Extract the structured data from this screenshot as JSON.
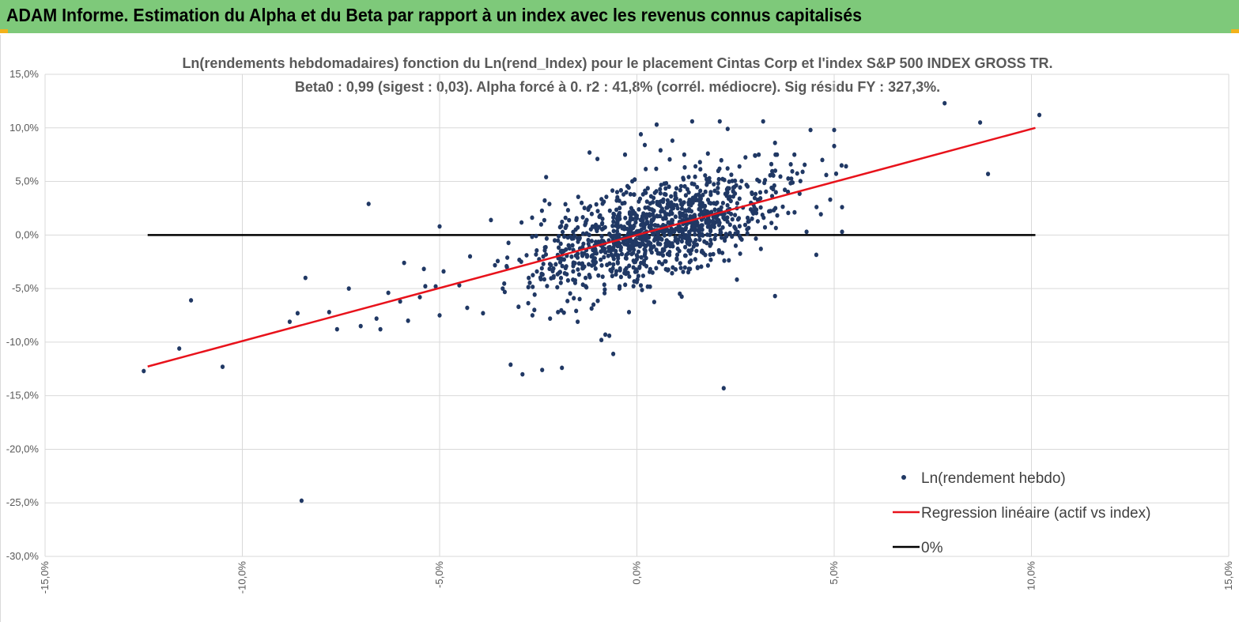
{
  "banner": {
    "title": "ADAM Informe. Estimation du Alpha et du Beta par rapport à un index avec les revenus connus capitalisés",
    "background": "#7ec97a",
    "corner_color": "#f2b21b"
  },
  "chart_data": {
    "type": "scatter",
    "title_line1": "Ln(rendements hebdomadaires) fonction du Ln(rend_Index) pour le placement Cintas Corp et l'index S&P 500 INDEX GROSS TR.",
    "title_line2": "Beta0 : 0,99  (sigest : 0,03). Alpha forcé à 0. r2 : 41,8% (corrél. médiocre). Sig résidu FY : 327,3%.",
    "xlim": [
      -15,
      15
    ],
    "ylim": [
      -30,
      15
    ],
    "x_ticks": [
      "-15,0%",
      "-10,0%",
      "-5,0%",
      "0,0%",
      "5,0%",
      "10,0%",
      "15,0%"
    ],
    "y_ticks": [
      "15,0%",
      "10,0%",
      "5,0%",
      "0,0%",
      "-5,0%",
      "-10,0%",
      "-15,0%",
      "-20,0%",
      "-25,0%",
      "-30,0%"
    ],
    "legend": {
      "position": "bottom-right",
      "scatter_label": "Ln(rendement hebdo)",
      "regression_label": "Regression linéaire (actif vs index)",
      "zero_label": "0%"
    },
    "colors": {
      "points": "#203864",
      "regression": "#e8121b",
      "zero_line": "#000000",
      "grid": "#d9d9d9",
      "text": "#595959"
    },
    "regression": {
      "beta": 0.99,
      "alpha": 0,
      "x_range": [
        -12.4,
        10.1
      ]
    },
    "zero_line": {
      "y": 0,
      "x_range": [
        -12.4,
        10.1
      ]
    },
    "points_cloud": {
      "count": 1150,
      "beta": 0.99,
      "x_center": 0.4,
      "x_spread": 1.6,
      "residual_spread": 2.1
    },
    "outliers": [
      [
        -12.5,
        -12.7
      ],
      [
        -11.6,
        -10.6
      ],
      [
        -11.3,
        -6.1
      ],
      [
        -10.5,
        -12.3
      ],
      [
        -8.8,
        -8.1
      ],
      [
        -8.6,
        -7.3
      ],
      [
        -8.4,
        -4.0
      ],
      [
        -8.5,
        -24.8
      ],
      [
        -7.8,
        -7.2
      ],
      [
        -7.6,
        -8.8
      ],
      [
        -7.3,
        -5.0
      ],
      [
        -7.0,
        -8.5
      ],
      [
        -6.8,
        2.9
      ],
      [
        -6.6,
        -7.8
      ],
      [
        -6.5,
        -8.8
      ],
      [
        -6.3,
        -5.4
      ],
      [
        -6.0,
        -6.2
      ],
      [
        -5.8,
        -8.0
      ],
      [
        -5.9,
        -2.6
      ],
      [
        -5.5,
        -5.8
      ],
      [
        -5.1,
        -4.8
      ],
      [
        -5.0,
        0.8
      ],
      [
        -4.9,
        -3.4
      ],
      [
        -4.5,
        -4.7
      ],
      [
        -4.3,
        -6.8
      ],
      [
        -3.9,
        -7.3
      ],
      [
        -3.7,
        1.4
      ],
      [
        -3.4,
        -5.0
      ],
      [
        -3.2,
        -12.1
      ],
      [
        -3.0,
        -6.7
      ],
      [
        -2.9,
        -13.0
      ],
      [
        -2.6,
        -7.0
      ],
      [
        -2.4,
        -12.6
      ],
      [
        -2.3,
        5.4
      ],
      [
        -2.2,
        -7.8
      ],
      [
        -2.0,
        -7.2
      ],
      [
        -1.9,
        -12.4
      ],
      [
        -1.6,
        -5.9
      ],
      [
        -1.5,
        -8.1
      ],
      [
        -1.4,
        3.0
      ],
      [
        -1.3,
        -4.0
      ],
      [
        -1.2,
        7.7
      ],
      [
        -1.1,
        -6.5
      ],
      [
        -1.0,
        7.1
      ],
      [
        -0.9,
        -9.8
      ],
      [
        -0.8,
        -9.3
      ],
      [
        -0.6,
        -11.1
      ],
      [
        -0.7,
        -9.4
      ],
      [
        -0.3,
        7.5
      ],
      [
        -0.2,
        -7.2
      ],
      [
        0.1,
        9.4
      ],
      [
        0.2,
        8.4
      ],
      [
        0.5,
        10.3
      ],
      [
        0.6,
        7.9
      ],
      [
        0.9,
        8.8
      ],
      [
        1.2,
        7.5
      ],
      [
        1.4,
        10.6
      ],
      [
        1.6,
        6.8
      ],
      [
        1.8,
        7.6
      ],
      [
        2.1,
        10.6
      ],
      [
        2.3,
        9.9
      ],
      [
        2.2,
        -14.3
      ],
      [
        2.6,
        6.4
      ],
      [
        3.0,
        7.4
      ],
      [
        3.2,
        10.6
      ],
      [
        3.5,
        8.6
      ],
      [
        3.5,
        -5.7
      ],
      [
        3.9,
        6.6
      ],
      [
        4.2,
        5.9
      ],
      [
        4.4,
        9.8
      ],
      [
        4.7,
        7.0
      ],
      [
        4.8,
        5.6
      ],
      [
        4.9,
        3.3
      ],
      [
        5.0,
        9.8
      ],
      [
        5.2,
        0.3
      ],
      [
        5.2,
        2.6
      ],
      [
        5.0,
        8.3
      ],
      [
        4.3,
        0.3
      ],
      [
        7.8,
        12.3
      ],
      [
        8.7,
        10.5
      ],
      [
        8.9,
        5.7
      ],
      [
        10.2,
        11.2
      ]
    ]
  }
}
